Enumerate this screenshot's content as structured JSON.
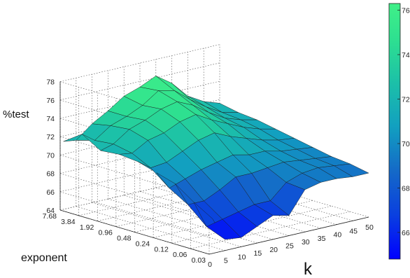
{
  "chart_data": {
    "type": "surface3d",
    "zlabel": "%test",
    "xlabel": "k",
    "ylabel": "exponent",
    "x_ticks": [
      "0",
      "5",
      "10",
      "15",
      "20",
      "25",
      "30",
      "35",
      "40",
      "45",
      "50"
    ],
    "y_ticks": [
      "0.03",
      "0.06",
      "0.12",
      "0.24",
      "0.48",
      "0.96",
      "1.92",
      "3.84",
      "7.68"
    ],
    "z_ticks": [
      "64",
      "66",
      "68",
      "70",
      "72",
      "74",
      "76",
      "78"
    ],
    "zlim": [
      64,
      78
    ],
    "colorbar": {
      "ticks": [
        "66",
        "68",
        "70",
        "72",
        "74",
        "76"
      ],
      "range": [
        64.8,
        76.3
      ],
      "colors": [
        "#0000ff",
        "#0a3fe0",
        "#1468c8",
        "#12a0c0",
        "#1cc0a8",
        "#2ee090",
        "#40f088"
      ]
    },
    "k": [
      1,
      5,
      10,
      15,
      20,
      25,
      30,
      35,
      40,
      45,
      50
    ],
    "exponent": [
      "0.03",
      "0.06",
      "0.12",
      "0.24",
      "0.48",
      "0.96",
      "1.92",
      "3.84",
      "7.68"
    ],
    "test_pct": [
      [
        67.8,
        65.2,
        65.0,
        65.8,
        66.6,
        66.2,
        68.6,
        69.0,
        69.0,
        68.8,
        68.8
      ],
      [
        69.0,
        66.0,
        66.4,
        66.8,
        67.2,
        67.2,
        68.8,
        69.4,
        69.6,
        69.4,
        69.2
      ],
      [
        70.4,
        67.8,
        67.8,
        68.6,
        69.6,
        69.6,
        69.8,
        70.0,
        69.8,
        69.6,
        69.4
      ],
      [
        71.0,
        69.0,
        69.6,
        70.2,
        70.6,
        71.0,
        70.6,
        70.6,
        70.2,
        70.0,
        69.8
      ],
      [
        71.6,
        70.6,
        70.8,
        71.6,
        72.4,
        72.8,
        72.0,
        71.4,
        70.8,
        70.4,
        70.2
      ],
      [
        71.8,
        71.6,
        72.6,
        73.0,
        73.8,
        74.2,
        73.2,
        72.4,
        71.6,
        71.0,
        70.6
      ],
      [
        71.6,
        72.0,
        73.2,
        73.8,
        74.6,
        75.0,
        74.2,
        73.0,
        72.0,
        71.4,
        71.0
      ],
      [
        72.8,
        71.8,
        73.0,
        73.6,
        74.4,
        75.6,
        75.2,
        73.8,
        72.6,
        71.6,
        71.2
      ],
      [
        71.4,
        71.2,
        72.6,
        73.6,
        74.8,
        75.4,
        76.2,
        75.0,
        73.2,
        72.2,
        71.6
      ]
    ]
  }
}
